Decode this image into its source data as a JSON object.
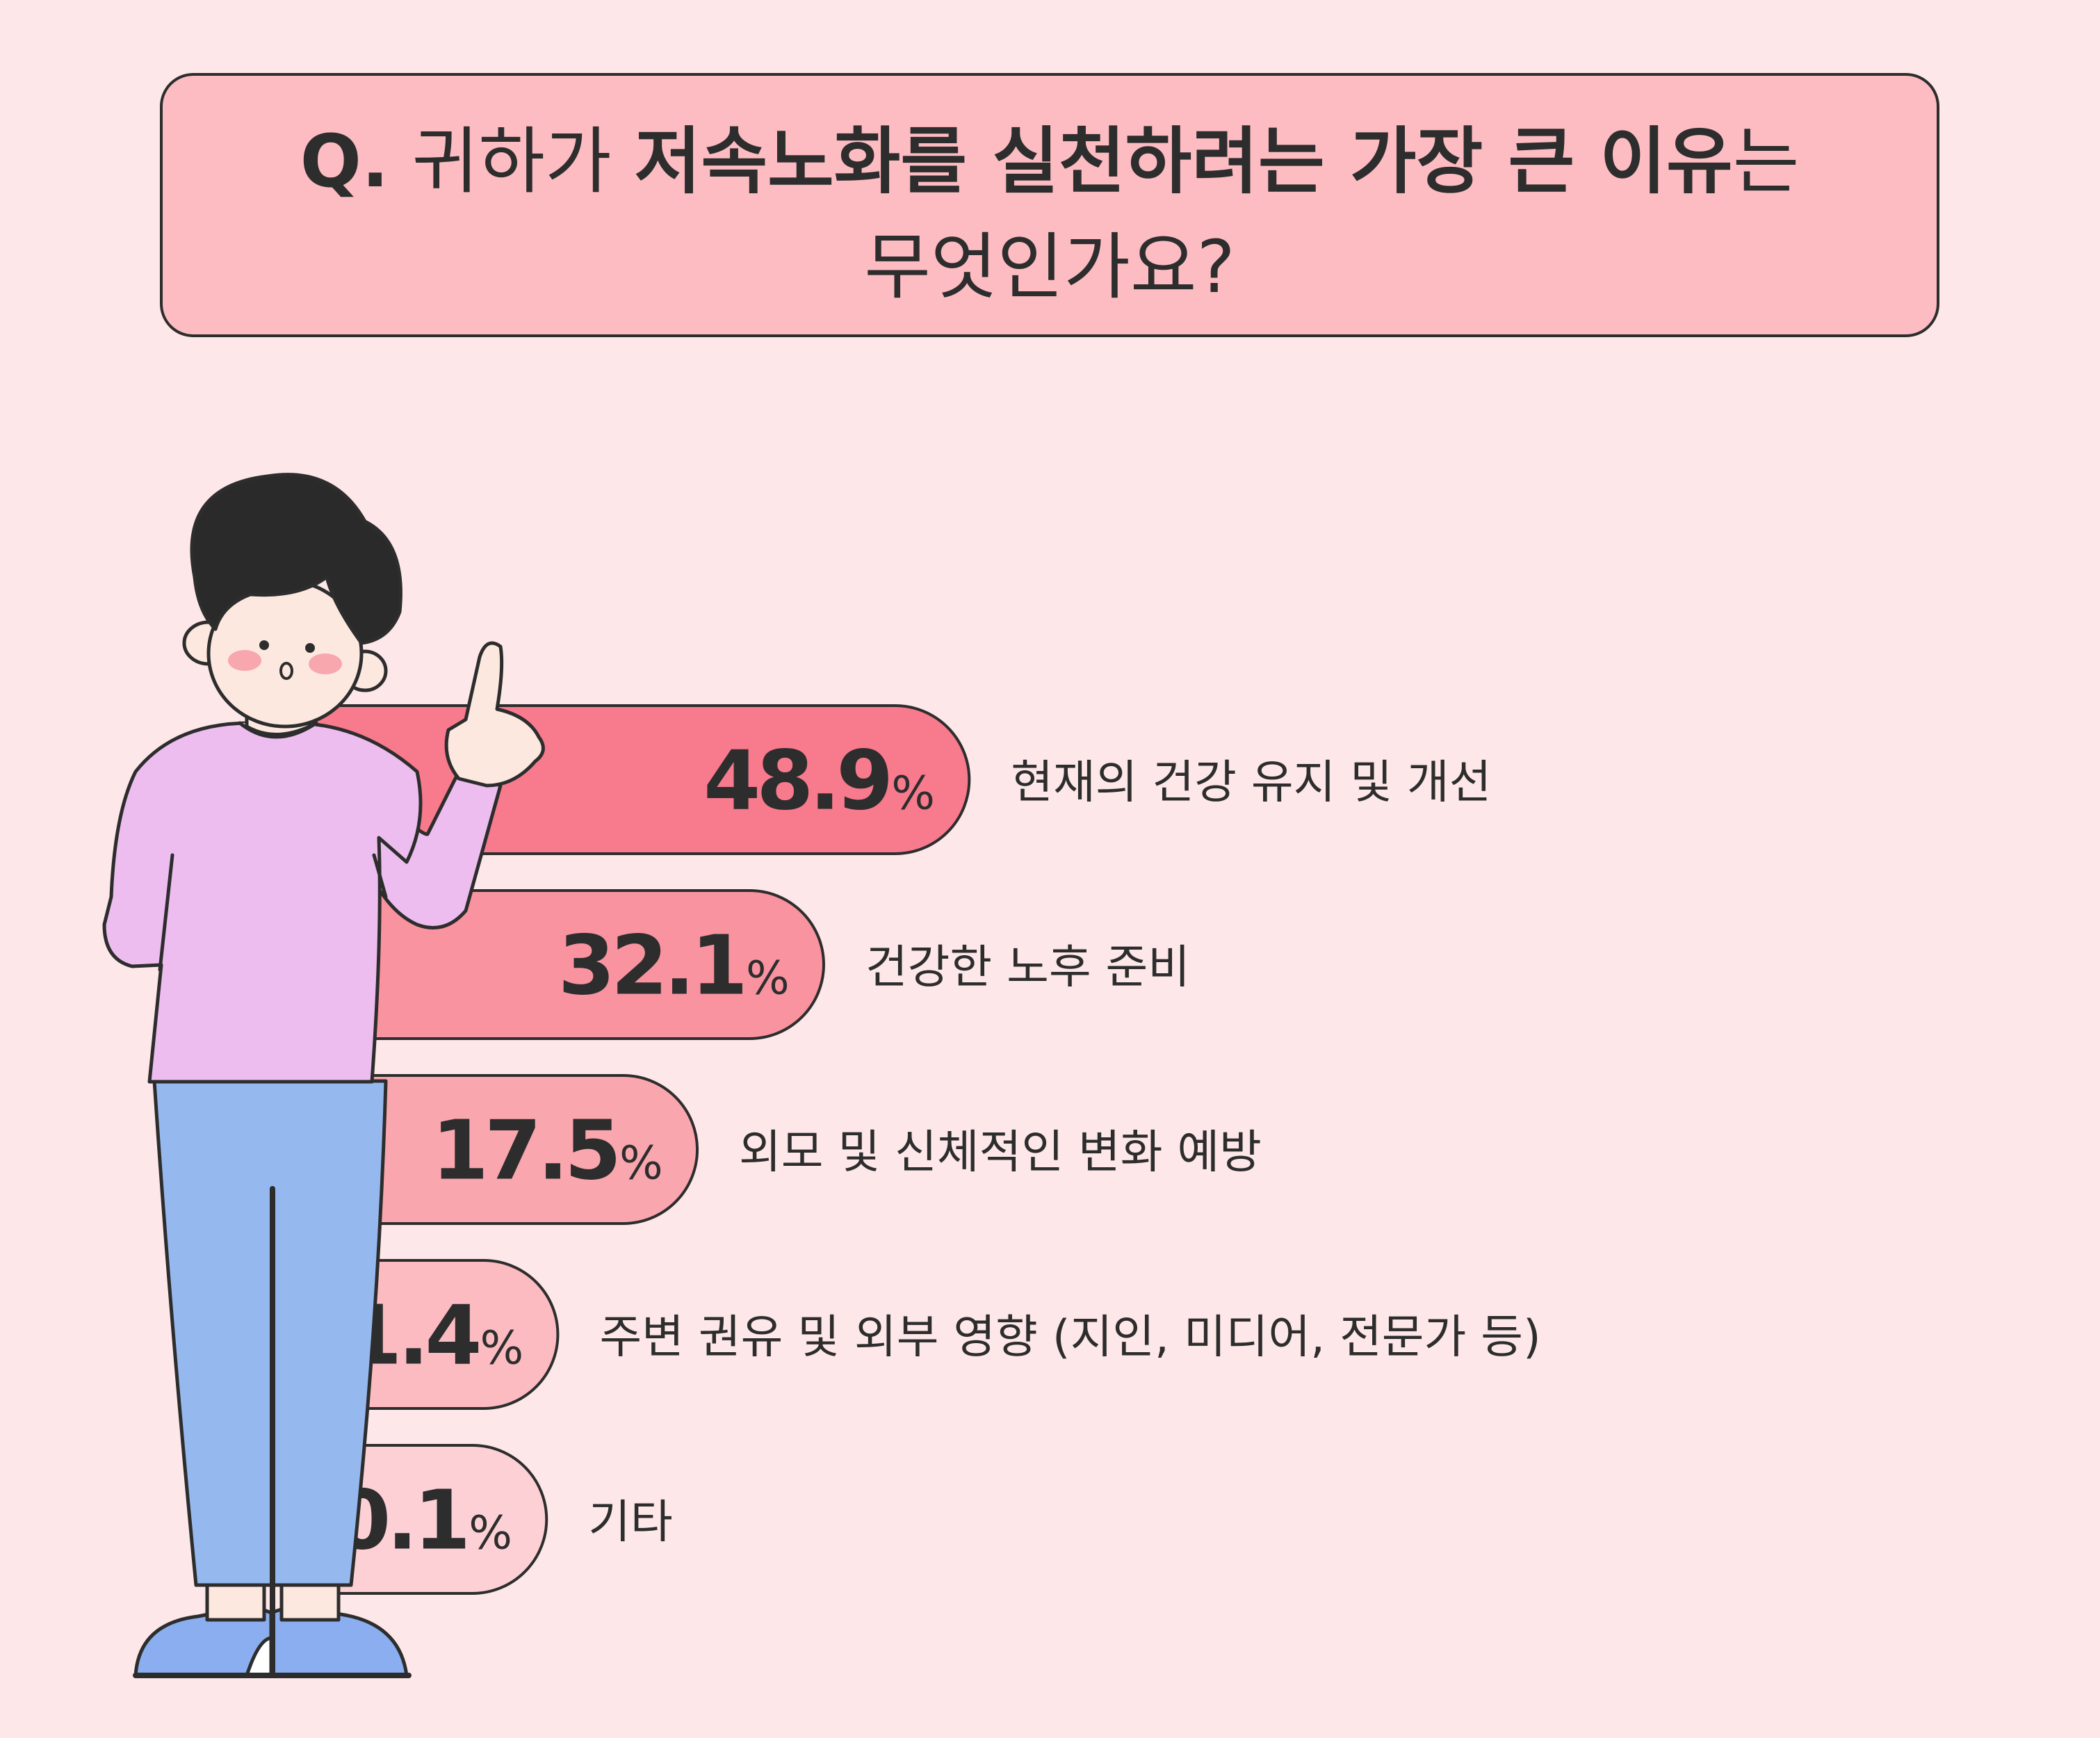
{
  "title": {
    "q_prefix": "Q.",
    "part1": "귀하가",
    "part2": "저속노화를 실천하려는 가장 큰 이유",
    "part3": "는",
    "line2": "무엇인가요?"
  },
  "chart_data": {
    "type": "bar",
    "orientation": "horizontal",
    "unit": "%",
    "categories": [
      "현재의 건강 유지 및 개선",
      "건강한 노후 준비",
      "외모 및 신체적인 변화 예방",
      "주변 권유 및 외부 영향 (지인, 미디어, 전문가 등)",
      "기타"
    ],
    "values": [
      48.9,
      32.1,
      17.5,
      1.4,
      0.1
    ],
    "value_labels": [
      "48.9",
      "32.1",
      "17.5",
      "1.4",
      "0.1"
    ],
    "bar_colors": [
      "#f77a8d",
      "#f8939f",
      "#f9a6ae",
      "#fbbbc1",
      "#fcd0d4"
    ]
  },
  "colors": {
    "background": "#fde7e8",
    "title_box": "#fcbcc1",
    "outline": "#2d2d2d",
    "shirt": "#edbdf0",
    "pants": "#95b9ef",
    "hair": "#2a2a2a",
    "skin": "#fde8e0",
    "cheek": "#f7a7ad",
    "shoe": "#8aaeef"
  },
  "illustration": {
    "icon": "pointing-person-icon"
  }
}
